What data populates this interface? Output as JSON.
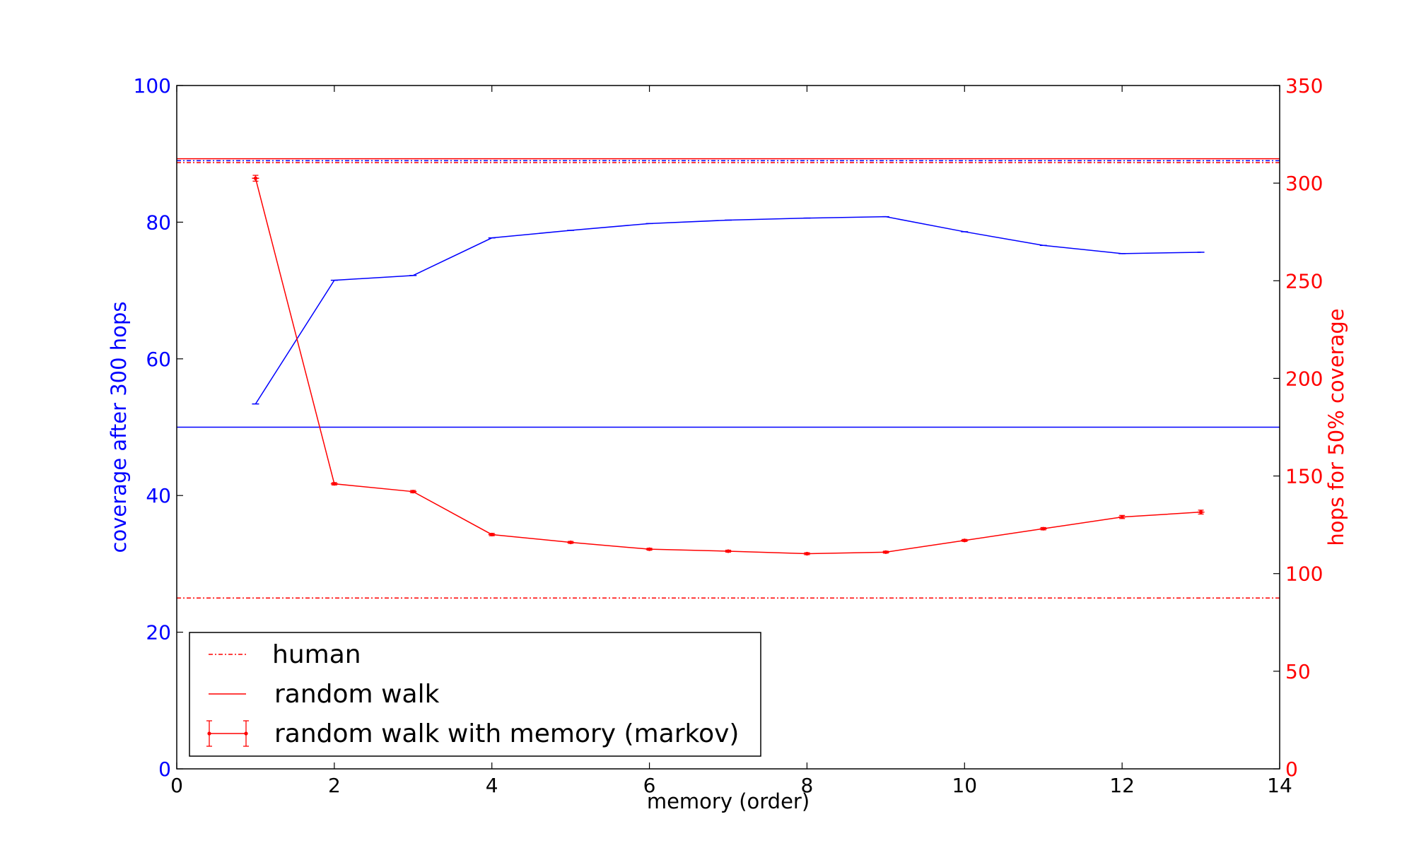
{
  "chart_data": {
    "type": "line",
    "title": "",
    "xlabel": "memory (order)",
    "ylabel_left": "coverage after 300 hops",
    "ylabel_right": "hops for 50% coverage",
    "xlim": [
      0,
      14
    ],
    "ylim_left": [
      0,
      100
    ],
    "ylim_right": [
      0,
      350
    ],
    "x_ticks": [
      "0",
      "2",
      "4",
      "6",
      "8",
      "10",
      "12",
      "14"
    ],
    "y_left_ticks": [
      "0",
      "20",
      "40",
      "60",
      "80",
      "100"
    ],
    "y_right_ticks": [
      "0",
      "50",
      "100",
      "150",
      "200",
      "250",
      "300",
      "350"
    ],
    "grid": false,
    "legend_position": "lower-left",
    "colors": {
      "left_axis": "#0000ff",
      "right_axis": "#ff0000",
      "frame": "#000000"
    },
    "series": [
      {
        "axis": "left",
        "color": "#0000ff",
        "style": "solid-errorbar",
        "x": [
          1,
          2,
          3,
          4,
          5,
          6,
          7,
          8,
          9,
          10,
          11,
          12,
          13
        ],
        "y": [
          53.4,
          71.5,
          72.2,
          77.7,
          78.8,
          79.8,
          80.3,
          80.6,
          80.8,
          78.6,
          76.6,
          75.4,
          75.6
        ]
      },
      {
        "axis": "right",
        "color": "#ff0000",
        "style": "solid-errorbar",
        "x": [
          1,
          2,
          3,
          4,
          5,
          6,
          7,
          8,
          9,
          10,
          11,
          12,
          13
        ],
        "y": [
          302.5,
          146,
          142,
          120,
          116,
          112.5,
          111.5,
          110.2,
          111,
          117,
          123,
          129,
          131.5
        ],
        "err": [
          1.5,
          0.6,
          0.6,
          0.6,
          0.5,
          0.5,
          0.5,
          0.5,
          0.5,
          0.5,
          0.6,
          0.8,
          1
        ]
      },
      {
        "axis": "left",
        "color": "#0000ff",
        "style": "hline-solid",
        "y": 50
      },
      {
        "axis": "left",
        "color": "#0000ff",
        "style": "hline-dashdot",
        "y": 89
      },
      {
        "axis": "right",
        "color": "#ff0000",
        "style": "hline-solid",
        "y": 312.5
      },
      {
        "axis": "right",
        "color": "#ff0000",
        "style": "hline-dashdot",
        "y": 310.5
      },
      {
        "axis": "right",
        "color": "#ff0000",
        "style": "hline-dashdot",
        "y": 87.5
      }
    ],
    "legend": [
      "human",
      "random walk",
      "random walk with memory (markov)"
    ]
  }
}
